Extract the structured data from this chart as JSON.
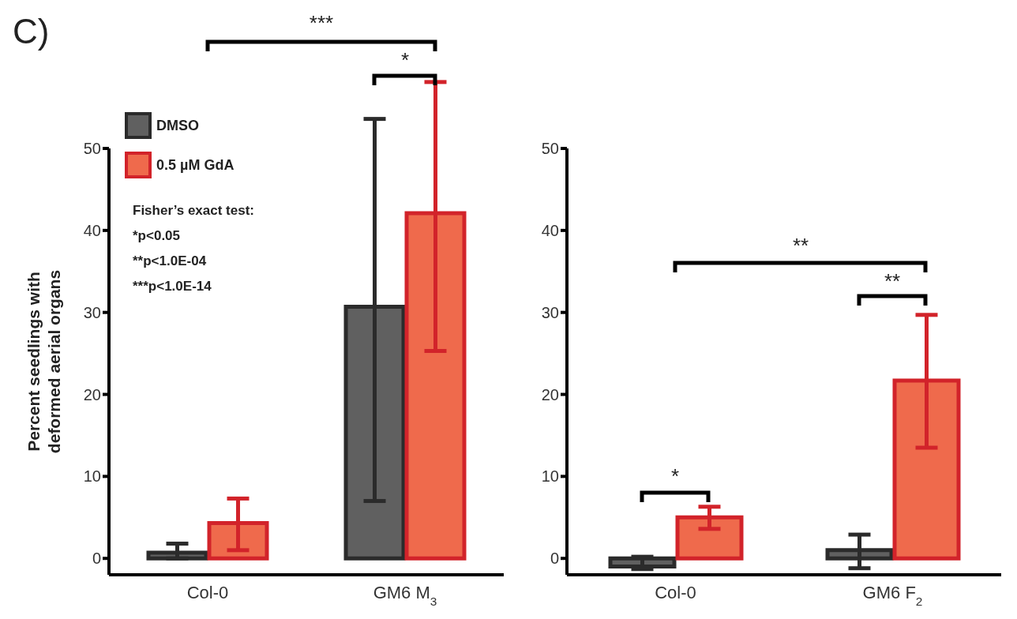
{
  "chart_data": [
    {
      "type": "bar",
      "ylabel": "Percent seedlings with\ndeformed aerial organs",
      "categories": [
        "Col-0",
        "GM6 M$_{3}$"
      ],
      "series": [
        {
          "name": "DMSO",
          "color": "#606060",
          "values": [
            0.7,
            30.7
          ],
          "errors": [
            [
              0.0,
              1.8
            ],
            [
              7.0,
              53.6
            ]
          ]
        },
        {
          "name": "0.5 µM GdA",
          "color": "#ef6a4c",
          "values": [
            4.3,
            42.1
          ],
          "errors": [
            [
              1.0,
              7.3
            ],
            [
              25.3,
              58.1
            ]
          ]
        }
      ],
      "ylim": [
        -2,
        50
      ],
      "yticks": [
        0,
        10,
        20,
        30,
        40,
        50
      ],
      "grid": false,
      "legend": "top left",
      "annotations": [
        "C)",
        "***",
        "*",
        "Fisher’s exact test:",
        "*p<0.05",
        "**p<1.0E-04",
        "***p<1.0E-14"
      ]
    },
    {
      "type": "bar",
      "categories": [
        "Col-0",
        "GM6 F$_{2}$"
      ],
      "series": [
        {
          "color": "#606060",
          "values": [
            -1.0,
            1.0
          ],
          "errors": [
            [
              -1.3,
              0.2
            ],
            [
              -1.2,
              2.9
            ]
          ]
        },
        {
          "color": "#ef6a4c",
          "values": [
            5.0,
            21.7
          ],
          "errors": [
            [
              3.6,
              6.3
            ],
            [
              13.5,
              29.7
            ]
          ]
        }
      ],
      "ylim": [
        -2,
        50
      ],
      "yticks": [
        0,
        10,
        20,
        30,
        40,
        50
      ],
      "grid": false,
      "annotations": [
        "**",
        "**",
        "*"
      ]
    }
  ]
}
